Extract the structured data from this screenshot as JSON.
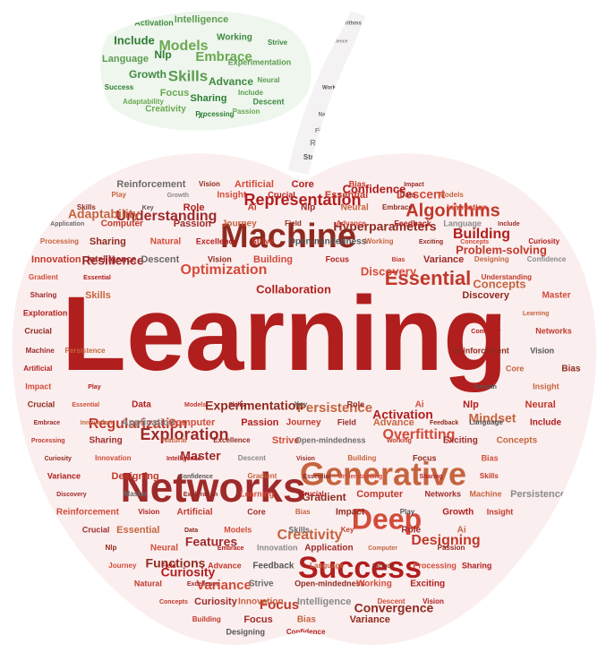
{
  "colors": {
    "apple_fill": "#fbeeee",
    "leaf_fill": "#eef6ee",
    "stem_fill": "#f4f2f2",
    "red_palette": [
      "#b11e1e",
      "#c0392b",
      "#9e2a2a",
      "#c5643f",
      "#8f2a1f",
      "#d24b3a"
    ],
    "green_palette": [
      "#3f8a3f",
      "#5c9c4f",
      "#2e7d32",
      "#6aa84f"
    ],
    "gray_palette": [
      "#6b6b6b",
      "#8a8a8a",
      "#555555"
    ]
  },
  "leaf_words": [
    "Activation",
    "Intelligence",
    "Include",
    "Models",
    "Working",
    "Language",
    "Nlp",
    "Embrace",
    "Growth",
    "Skills",
    "Success",
    "Focus",
    "Advance",
    "Include",
    "Sharing",
    "Creativity",
    "Descent",
    "Experimentation",
    "Processing",
    "Adaptability",
    "Strive",
    "Neural",
    "Ai",
    "Passion"
  ],
  "stem_words": [
    "Key",
    "Role",
    "Strive",
    "Algorithms",
    "Resilience",
    "Working",
    "Natural",
    "Field"
  ],
  "apple_words": {
    "huge": [
      "Learning"
    ],
    "large": [
      "Networks",
      "Generative",
      "Machine",
      "Deep",
      "Success",
      "Essential"
    ],
    "medium": [
      "Representation",
      "Algorithms",
      "Understanding",
      "Adaptability",
      "Hyperparameters",
      "Discovery",
      "Building",
      "Regularization",
      "Exploration",
      "Persistence",
      "Experimentation",
      "Optimization",
      "Collaboration",
      "Problem-solving",
      "Resilience",
      "Concepts",
      "Convergence",
      "Variance",
      "Curiosity",
      "Designing",
      "Features",
      "Creativity",
      "Functions",
      "Overfitting",
      "Activation",
      "Focus",
      "Master",
      "Mindset",
      "Gradient",
      "Descent",
      "Confidence"
    ],
    "small": [
      "Reinforcement",
      "Vision",
      "Artificial",
      "Core",
      "Bias",
      "Impact",
      "Play",
      "Growth",
      "Insight",
      "Crucial",
      "Essential",
      "Data",
      "Models",
      "Skills",
      "Key",
      "Role",
      "Ai",
      "Nlp",
      "Neural",
      "Embrace",
      "Innovation",
      "Application",
      "Computer",
      "Passion",
      "Journey",
      "Field",
      "Advance",
      "Feedback",
      "Language",
      "Include",
      "Processing",
      "Sharing",
      "Natural",
      "Excellence",
      "Strive",
      "Open-mindedness",
      "Working",
      "Exciting",
      "Concepts",
      "Curiosity",
      "Innovation",
      "Intelligence",
      "Descent",
      "Vision",
      "Building",
      "Focus",
      "Bias",
      "Variance",
      "Designing",
      "Confidence",
      "Gradient",
      "Essential",
      "Understanding",
      "Sharing",
      "Skills",
      "Discovery",
      "Master",
      "Exploration",
      "Learning",
      "Crucial",
      "Computer",
      "Networks",
      "Machine",
      "Persistence"
    ]
  }
}
